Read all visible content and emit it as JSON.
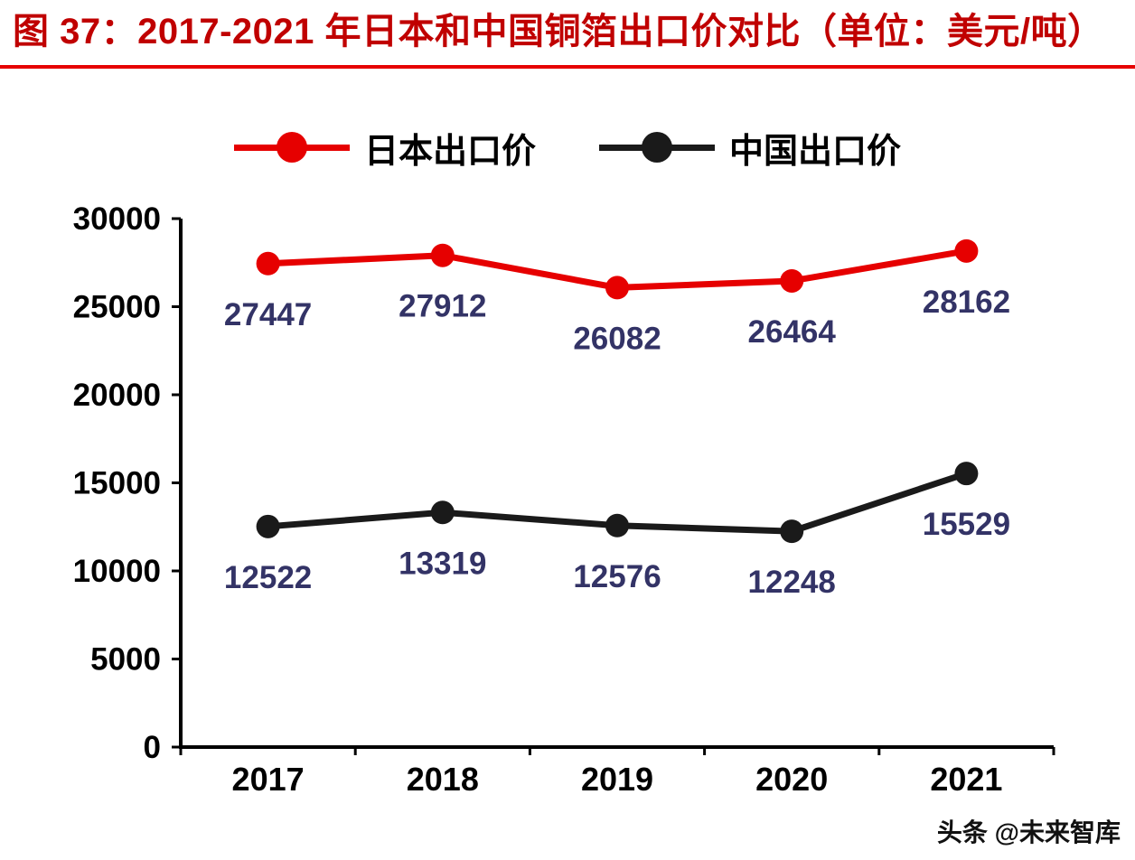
{
  "title": "图 37：2017-2021 年日本和中国铜箔出口价对比（单位：美元/吨）",
  "watermark": "头条 @未来智库",
  "colors": {
    "title_text": "#c00000",
    "rule": "#e60000",
    "axis_text": "#000000"
  },
  "chart_data": {
    "type": "line",
    "title": "2017-2021 年日本和中国铜箔出口价对比",
    "unit": "美元/吨",
    "categories": [
      "2017",
      "2018",
      "2019",
      "2020",
      "2021"
    ],
    "series": [
      {
        "name": "日本出口价",
        "color": "#e60000",
        "values": [
          27447,
          27912,
          26082,
          26464,
          28162
        ]
      },
      {
        "name": "中国出口价",
        "color": "#1a1a1a",
        "values": [
          12522,
          13319,
          12576,
          12248,
          15529
        ]
      }
    ],
    "ylim": [
      0,
      30000
    ],
    "ytick_step": 5000,
    "grid": false,
    "legend_position": "top",
    "data_label_color": "#333366"
  }
}
